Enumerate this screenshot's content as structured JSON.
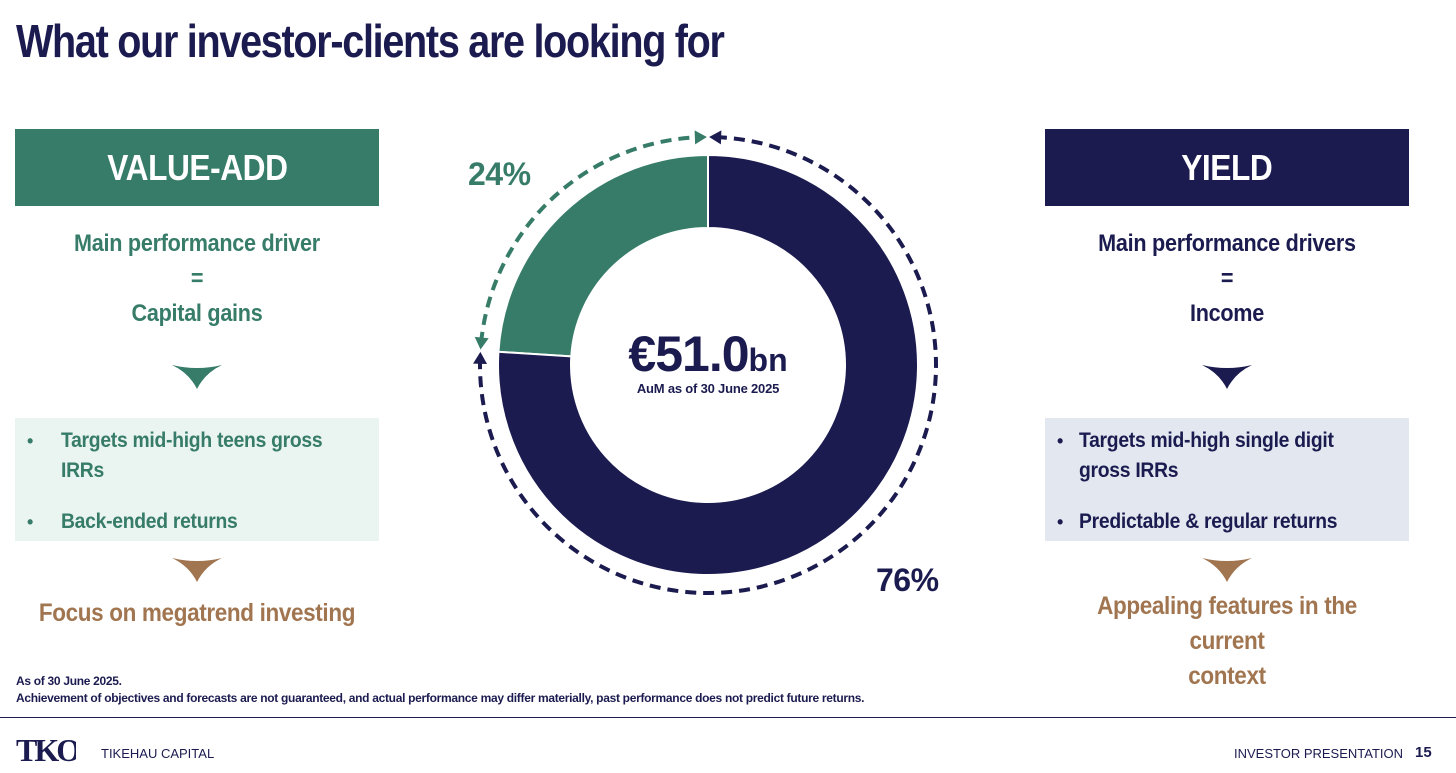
{
  "title": "What our investor-clients are looking for",
  "left": {
    "header": "VALUE-ADD",
    "driver_lines": [
      "Main performance driver",
      "=",
      "Capital gains"
    ],
    "bullets": [
      "Targets mid-high teens gross IRRs",
      "Back-ended returns"
    ],
    "focus_lines": [
      "Focus on megatrend investing"
    ]
  },
  "right": {
    "header": "YIELD",
    "driver_lines": [
      "Main performance drivers",
      "=",
      "Income"
    ],
    "bullets": [
      "Targets mid-high single digit gross IRRs",
      "Predictable & regular returns"
    ],
    "focus_lines": [
      "Appealing features in the current",
      "context"
    ]
  },
  "chart_data": {
    "type": "pie",
    "variant": "donut",
    "center_value": "€51.0",
    "center_unit": "bn",
    "center_label": "AuM as of 30 June 2025",
    "slices": [
      {
        "label": "Value-add",
        "value": 24,
        "display": "24%",
        "color": "#367c68"
      },
      {
        "label": "Yield",
        "value": 76,
        "display": "76%",
        "color": "#1b1b50"
      }
    ]
  },
  "footnote": {
    "line1": "As of 30 June 2025.",
    "line2": "Achievement of objectives and forecasts are not guaranteed, and actual performance may differ materially, past performance does not predict future returns."
  },
  "footer": {
    "logo_text": "TKO",
    "brand": "TIKEHAU CAPITAL",
    "presentation": "INVESTOR PRESENTATION",
    "page": "15"
  },
  "colors": {
    "navy": "#1b1b50",
    "green": "#367c68",
    "brown": "#a07550"
  }
}
